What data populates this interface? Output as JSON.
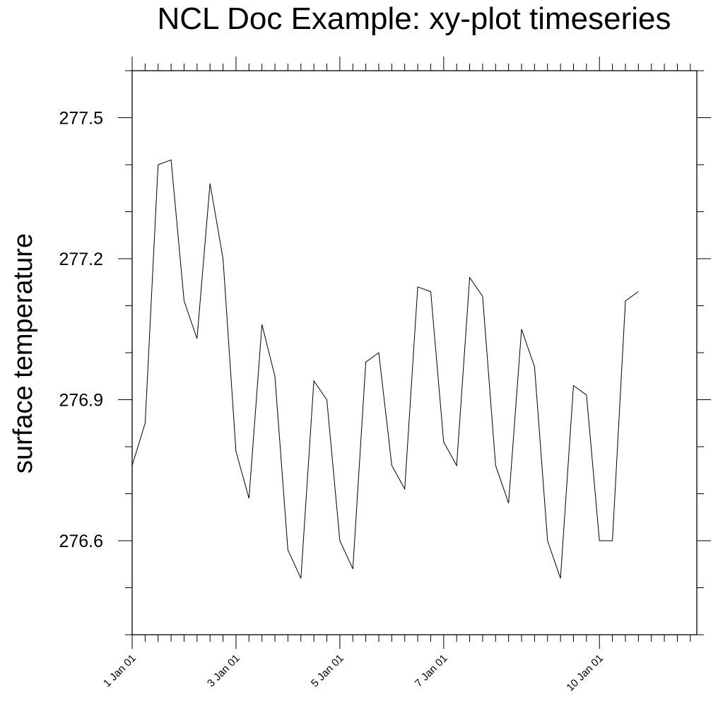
{
  "chart_data": {
    "type": "line",
    "title": "NCL Doc Example: xy-plot timeseries",
    "xlabel": "",
    "ylabel": "surface temperature",
    "ylim": [
      276.4,
      277.6
    ],
    "xlim": [
      "2001-01-01T00:00",
      "2001-01-11T21:00"
    ],
    "y_ticks": [
      {
        "value": 276.6,
        "label": "276.6"
      },
      {
        "value": 276.9,
        "label": "276.9"
      },
      {
        "value": 277.2,
        "label": "277.2"
      },
      {
        "value": 277.5,
        "label": "277.5"
      }
    ],
    "x_ticks": [
      {
        "value": "2001-01-01T00:00",
        "label": "1 Jan 01"
      },
      {
        "value": "2001-01-03T00:00",
        "label": "3 Jan 01"
      },
      {
        "value": "2001-01-05T00:00",
        "label": "5 Jan 01"
      },
      {
        "value": "2001-01-07T00:00",
        "label": "7 Jan 01"
      },
      {
        "value": "2001-01-10T00:00",
        "label": "10 Jan 01"
      }
    ],
    "grid": false,
    "legend": "none",
    "line_color": "#000000",
    "series": [
      {
        "x": [
          "2001-01-01T00:00",
          "2001-01-01T06:00",
          "2001-01-01T12:00",
          "2001-01-01T18:00",
          "2001-01-02T00:00",
          "2001-01-02T06:00",
          "2001-01-02T12:00",
          "2001-01-02T18:00",
          "2001-01-03T00:00",
          "2001-01-03T06:00",
          "2001-01-03T12:00",
          "2001-01-03T18:00",
          "2001-01-04T00:00",
          "2001-01-04T06:00",
          "2001-01-04T12:00",
          "2001-01-04T18:00",
          "2001-01-05T00:00",
          "2001-01-05T06:00",
          "2001-01-05T12:00",
          "2001-01-05T18:00",
          "2001-01-06T00:00",
          "2001-01-06T06:00",
          "2001-01-06T12:00",
          "2001-01-06T18:00",
          "2001-01-07T00:00",
          "2001-01-07T06:00",
          "2001-01-07T12:00",
          "2001-01-07T18:00",
          "2001-01-08T00:00",
          "2001-01-08T06:00",
          "2001-01-08T12:00",
          "2001-01-08T18:00",
          "2001-01-09T00:00",
          "2001-01-09T06:00",
          "2001-01-09T12:00",
          "2001-01-09T18:00",
          "2001-01-10T00:00",
          "2001-01-10T06:00",
          "2001-01-10T12:00",
          "2001-01-10T18:00"
        ],
        "y": [
          276.76,
          276.85,
          277.4,
          277.41,
          277.11,
          277.03,
          277.36,
          277.2,
          276.79,
          276.69,
          277.06,
          276.95,
          276.58,
          276.52,
          276.94,
          276.9,
          276.6,
          276.54,
          276.98,
          277.0,
          276.76,
          276.71,
          277.14,
          277.13,
          276.81,
          276.76,
          277.16,
          277.12,
          276.76,
          276.68,
          277.05,
          276.97,
          276.6,
          276.52,
          276.93,
          276.91,
          276.6,
          276.6,
          277.11,
          277.13
        ]
      }
    ]
  }
}
